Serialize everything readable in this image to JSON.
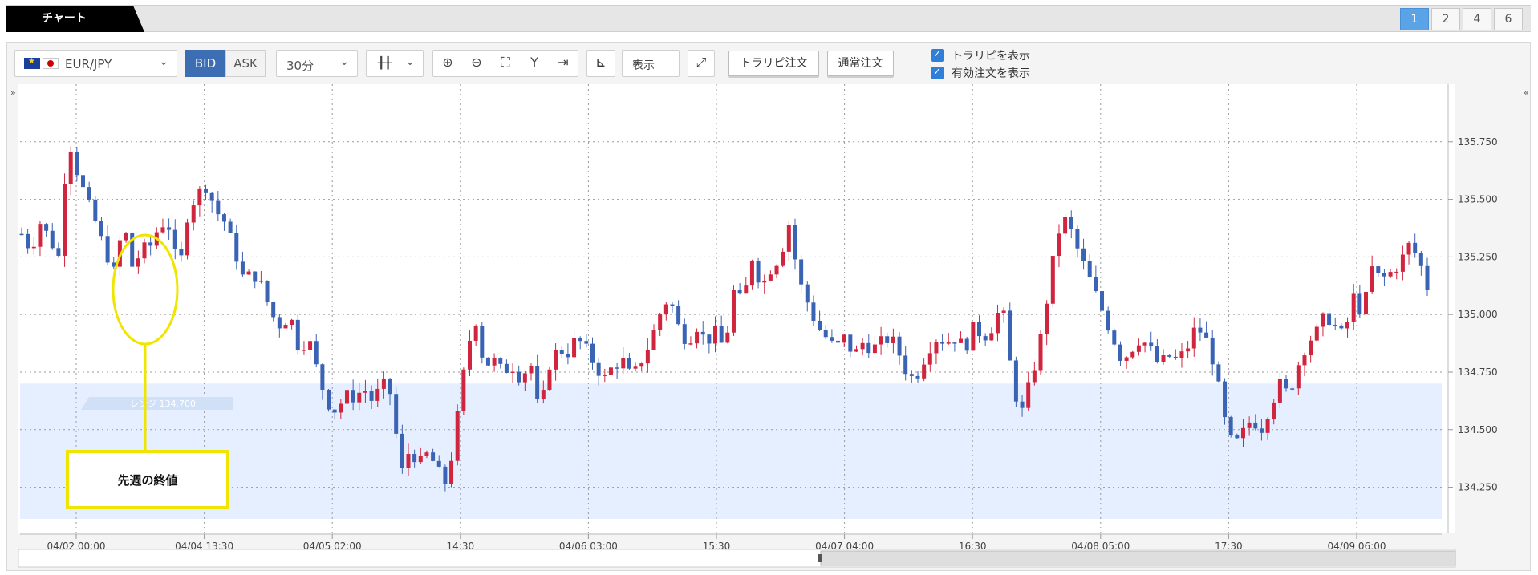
{
  "tabs": {
    "active_label": "チャート",
    "layouts": [
      "1",
      "2",
      "4",
      "6"
    ],
    "active_layout": "1"
  },
  "toolbar": {
    "pair": "EUR/JPY",
    "bid_label": "BID",
    "ask_label": "ASK",
    "period": "30分",
    "display_label": "表示",
    "trap_order_label": "トラリピ注文",
    "normal_order_label": "通常注文",
    "check_trap": "トラリピを表示",
    "check_orders": "有効注文を表示"
  },
  "overlay": {
    "range_label": "レンジ 134.700",
    "callout_text": "先週の終値"
  },
  "chart_data": {
    "type": "candlestick",
    "x_tick_labels": [
      "04/02 00:00",
      "04/04 13:30",
      "04/05 02:00",
      "14:30",
      "04/06 03:00",
      "15:30",
      "04/07 04:00",
      "16:30",
      "04/08 05:00",
      "17:30",
      "04/09 06:00"
    ],
    "y_tick_labels": [
      "135.750",
      "135.500",
      "135.250",
      "135.000",
      "134.750",
      "134.500",
      "134.250"
    ],
    "y_ticks": [
      135.75,
      135.5,
      135.25,
      135.0,
      134.75,
      134.5,
      134.25
    ],
    "ylim": [
      134.05,
      136.0
    ],
    "range_level": 134.7,
    "colors": {
      "up": "#d0253e",
      "down": "#3a63b4",
      "range_fill": "#e6efff",
      "grid": "#9a9a9a",
      "callout": "#f0e500"
    },
    "close_path": [
      135.35,
      135.28,
      135.4,
      135.33,
      135.25,
      135.78,
      135.62,
      135.5,
      135.4,
      135.28,
      135.18,
      135.4,
      135.2,
      135.28,
      135.3,
      135.4,
      135.38,
      135.17,
      135.45,
      135.52,
      135.56,
      135.45,
      135.4,
      135.28,
      135.15,
      135.18,
      135.12,
      135.0,
      134.95,
      135.0,
      134.85,
      134.9,
      134.75,
      134.62,
      134.58,
      134.65,
      134.64,
      134.68,
      134.62,
      134.7,
      134.65,
      134.3,
      134.42,
      134.35,
      134.4,
      134.32,
      134.26,
      134.52,
      134.8,
      135.0,
      134.78,
      134.8,
      134.75,
      134.78,
      134.72,
      134.8,
      134.55,
      134.78,
      134.85,
      134.83,
      134.9,
      134.85,
      134.78,
      134.72,
      134.78,
      134.8,
      134.72,
      134.8,
      134.88,
      135.0,
      135.08,
      134.95,
      134.88,
      134.95,
      134.88,
      134.92,
      134.85,
      135.1,
      135.05,
      135.25,
      135.12,
      135.2,
      135.25,
      135.4,
      135.15,
      135.05,
      134.95,
      134.9,
      134.85,
      134.9,
      134.82,
      134.88,
      134.85,
      134.88,
      134.9,
      134.82,
      134.72,
      134.75,
      134.85,
      134.9,
      134.88,
      134.9,
      134.85,
      134.95,
      134.9,
      134.95,
      135.05,
      134.75,
      134.55,
      134.7,
      134.85,
      135.1,
      135.35,
      135.42,
      135.3,
      135.2,
      135.1,
      135.0,
      134.9,
      134.8,
      134.85,
      134.9,
      134.85,
      134.78,
      134.82,
      134.8,
      134.85,
      134.95,
      134.9,
      134.78,
      134.55,
      134.42,
      134.48,
      134.55,
      134.5,
      134.6,
      134.7,
      134.65,
      134.78,
      134.88,
      134.92,
      135.0,
      134.95,
      134.9,
      135.08,
      135.0,
      135.2,
      135.15,
      135.18,
      135.22,
      135.3,
      135.25,
      135.12
    ]
  }
}
